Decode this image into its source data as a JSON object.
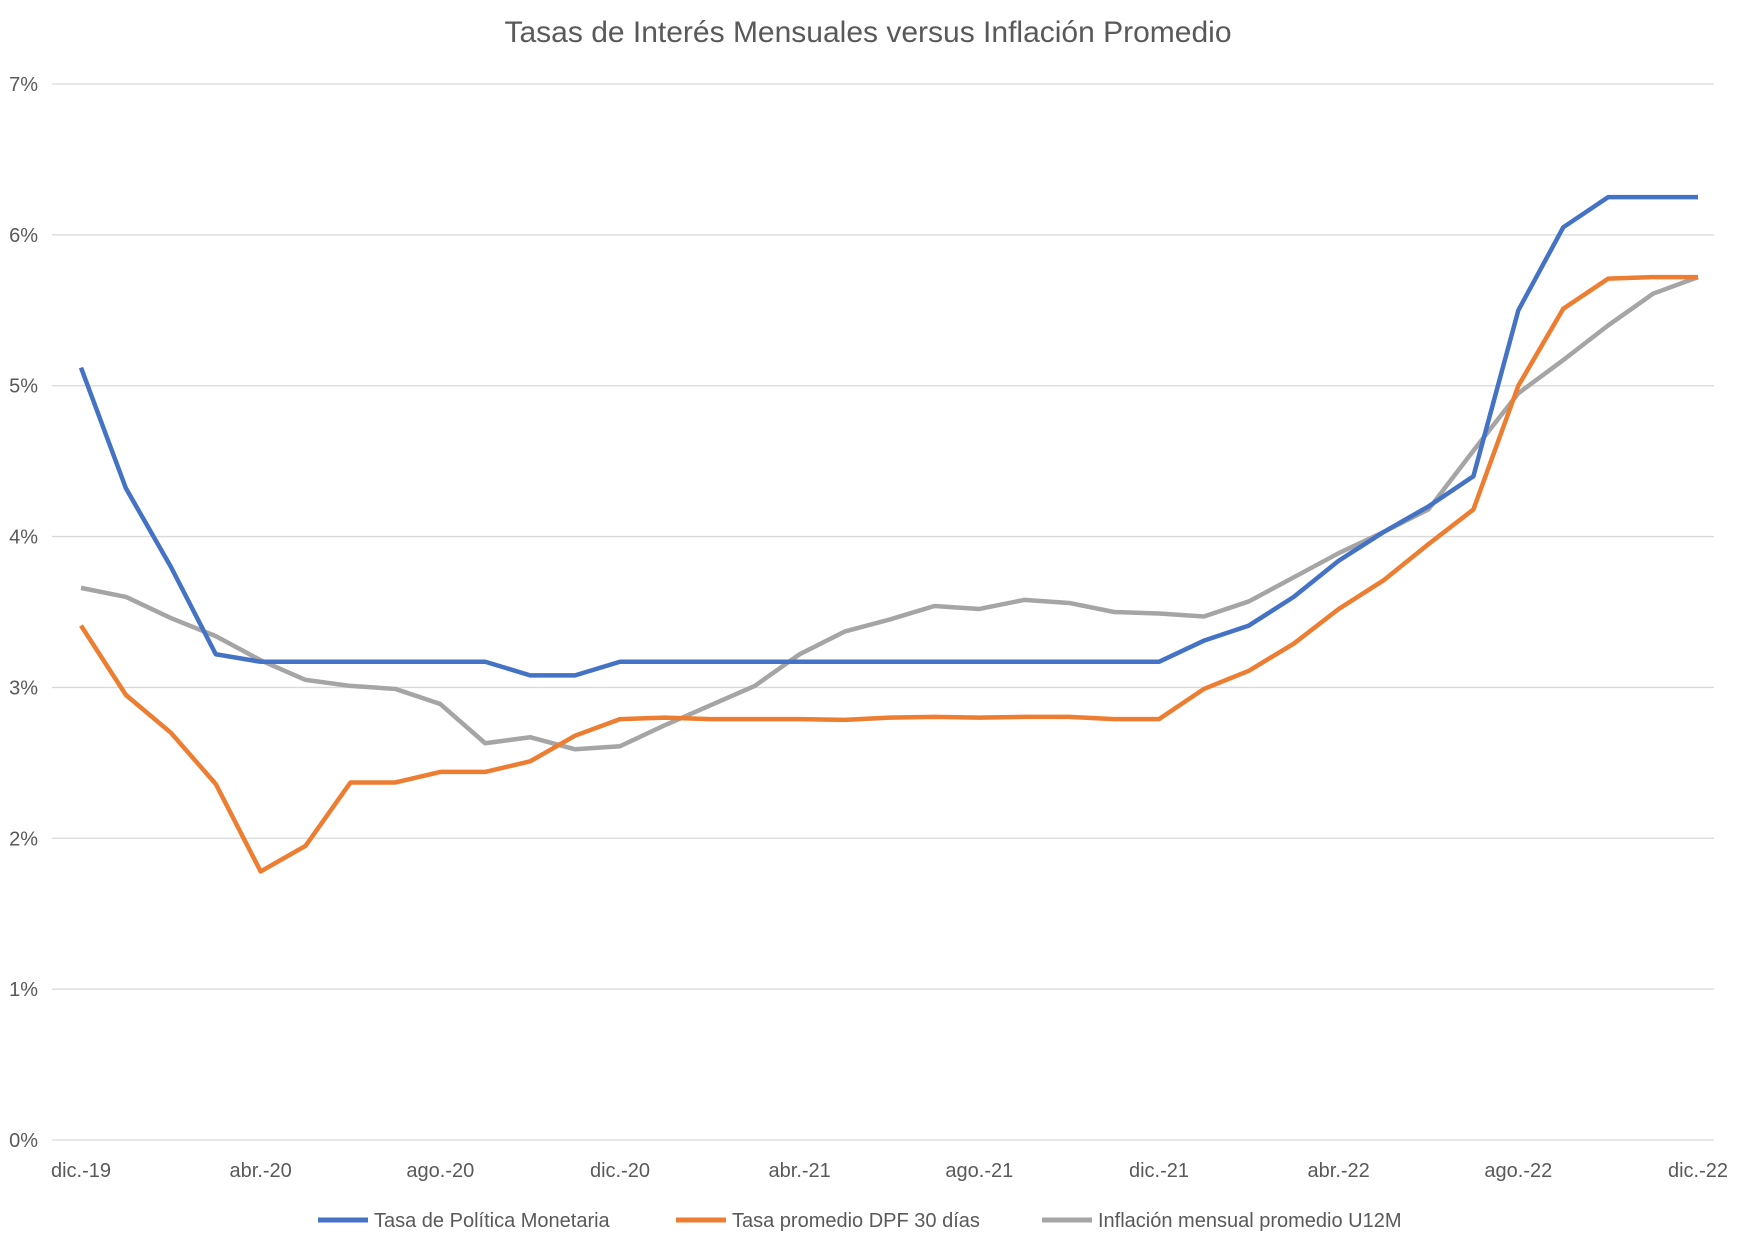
{
  "chart_data": {
    "type": "line",
    "title": "Tasas de Interés Mensuales versus Inflación Promedio",
    "xlabel": "",
    "ylabel": "",
    "ylim": [
      0,
      7
    ],
    "yticks": [
      0,
      1,
      2,
      3,
      4,
      5,
      6,
      7
    ],
    "ytick_labels": [
      "0%",
      "1%",
      "2%",
      "3%",
      "4%",
      "5%",
      "6%",
      "7%"
    ],
    "x": [
      "dic.-19",
      "ene.-20",
      "feb.-20",
      "mar.-20",
      "abr.-20",
      "may.-20",
      "jun.-20",
      "jul.-20",
      "ago.-20",
      "sep.-20",
      "oct.-20",
      "nov.-20",
      "dic.-20",
      "ene.-21",
      "feb.-21",
      "mar.-21",
      "abr.-21",
      "may.-21",
      "jun.-21",
      "jul.-21",
      "ago.-21",
      "sep.-21",
      "oct.-21",
      "nov.-21",
      "dic.-21",
      "ene.-22",
      "feb.-22",
      "mar.-22",
      "abr.-22",
      "may.-22",
      "jun.-22",
      "jul.-22",
      "ago.-22",
      "sep.-22",
      "oct.-22",
      "nov.-22",
      "dic.-22"
    ],
    "x_tick_labels": [
      "dic.-19",
      "abr.-20",
      "ago.-20",
      "dic.-20",
      "abr.-21",
      "ago.-21",
      "dic.-21",
      "abr.-22",
      "ago.-22",
      "dic.-22"
    ],
    "x_tick_every": 4,
    "grid": true,
    "legend_position": "bottom",
    "series": [
      {
        "name": "Tasa de Política Monetaria",
        "color": "#4472C4",
        "values": [
          5.12,
          4.32,
          3.8,
          3.22,
          3.17,
          3.17,
          3.17,
          3.17,
          3.17,
          3.17,
          3.08,
          3.08,
          3.17,
          3.17,
          3.17,
          3.17,
          3.17,
          3.17,
          3.17,
          3.17,
          3.17,
          3.17,
          3.17,
          3.17,
          3.17,
          3.31,
          3.41,
          3.6,
          3.84,
          4.03,
          4.2,
          4.4,
          5.5,
          6.05,
          6.25,
          6.25,
          6.25
        ]
      },
      {
        "name": "Tasa promedio DPF 30 días",
        "color": "#ED7D31",
        "values": [
          3.41,
          2.95,
          2.7,
          2.36,
          1.78,
          1.95,
          2.37,
          2.37,
          2.44,
          2.44,
          2.51,
          2.68,
          2.79,
          2.8,
          2.79,
          2.79,
          2.79,
          2.785,
          2.8,
          2.805,
          2.8,
          2.805,
          2.805,
          2.79,
          2.79,
          2.99,
          3.11,
          3.29,
          3.52,
          3.71,
          3.95,
          4.18,
          5.0,
          5.51,
          5.71,
          5.72,
          5.72
        ]
      },
      {
        "name": "Inflación mensual promedio U12M",
        "color": "#A5A5A5",
        "values": [
          3.66,
          3.6,
          3.46,
          3.34,
          3.18,
          3.05,
          3.01,
          2.99,
          2.89,
          2.63,
          2.67,
          2.59,
          2.61,
          2.75,
          2.88,
          3.01,
          3.22,
          3.37,
          3.45,
          3.54,
          3.52,
          3.58,
          3.56,
          3.5,
          3.49,
          3.47,
          3.57,
          3.73,
          3.89,
          4.03,
          4.18,
          4.57,
          4.95,
          5.17,
          5.4,
          5.61,
          5.72
        ]
      }
    ]
  }
}
